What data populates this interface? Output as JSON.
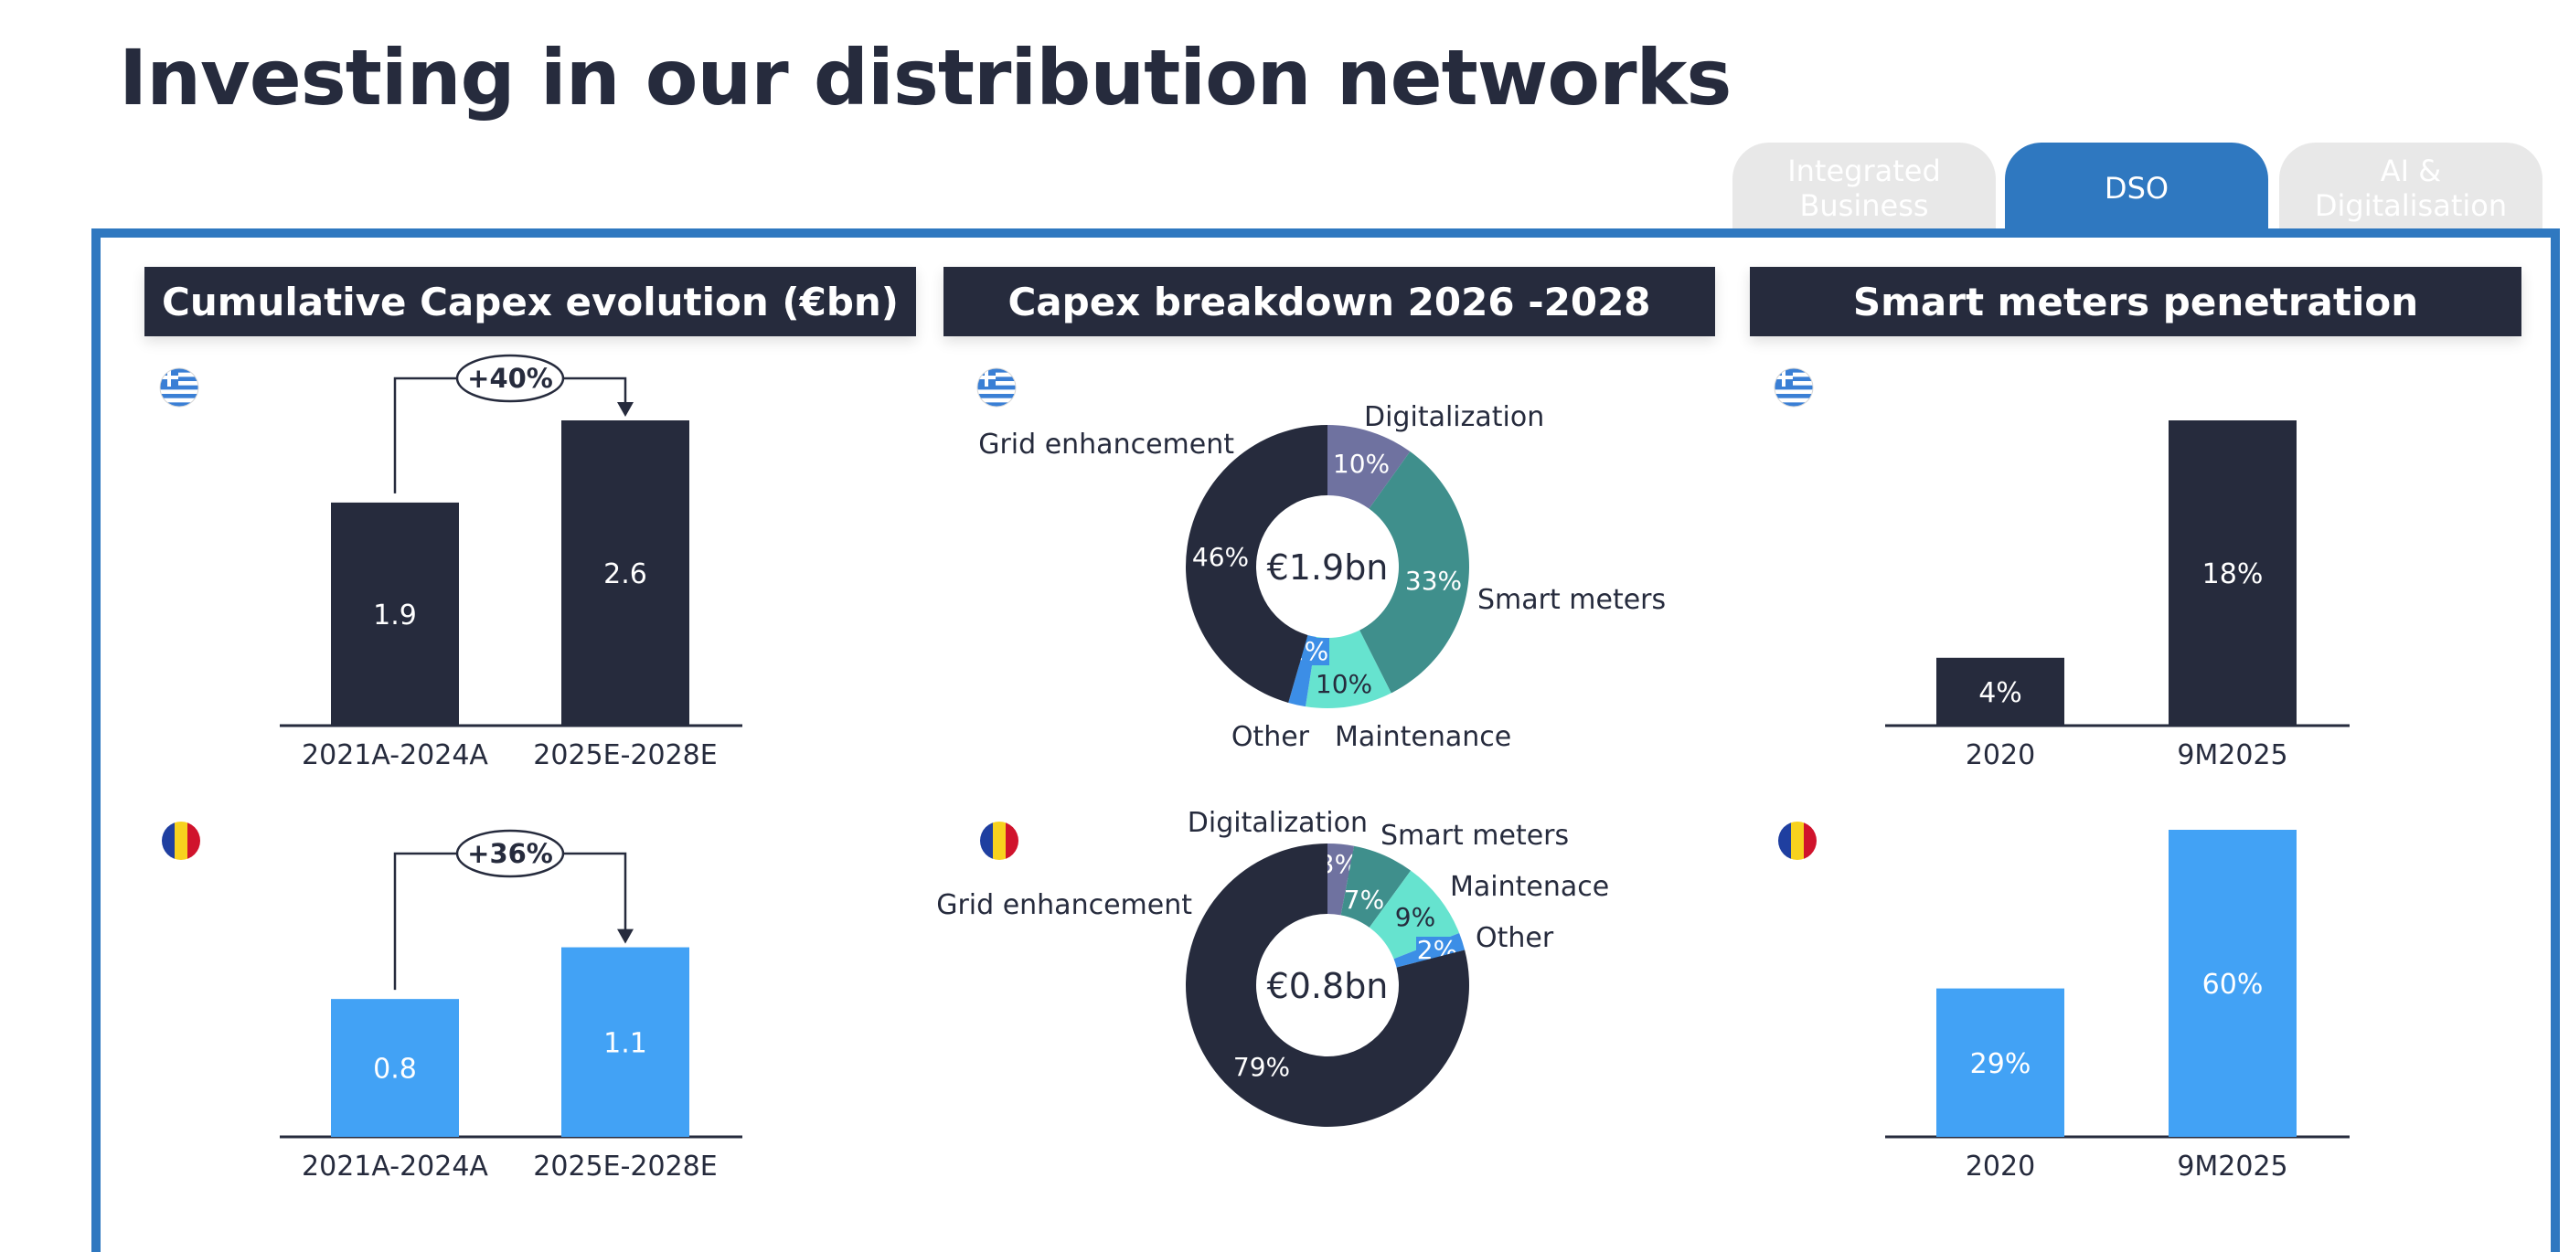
{
  "page": {
    "title": "Investing in our distribution networks"
  },
  "tabs": [
    {
      "label": "Integrated Business",
      "lines": [
        "Integrated",
        "Business"
      ],
      "active": false
    },
    {
      "label": "DSO",
      "lines": [
        "DSO"
      ],
      "active": true
    },
    {
      "label": "AI & Digitalisation",
      "lines": [
        "AI &",
        "Digitalisation"
      ],
      "active": false
    }
  ],
  "panels": {
    "capex_evolution": {
      "title": "Cumulative Capex evolution (€bn)"
    },
    "capex_breakdown": {
      "title": "Capex breakdown 2026 -2028"
    },
    "smart_meters": {
      "title": "Smart meters penetration"
    }
  },
  "colors": {
    "dark": "#262b3d",
    "blue": "#42a2f5",
    "accent": "#2f78c0",
    "purple": "#6f72a0",
    "teal": "#3f8f8c",
    "mint": "#66e3cf",
    "other": "#3c8ee6"
  },
  "icons": {
    "greece": "greece-flag-icon",
    "romania": "romania-flag-icon"
  },
  "chart_data": [
    {
      "id": "capex_greece",
      "type": "bar",
      "country": "greece",
      "categories": [
        "2021A-2024A",
        "2025E-2028E"
      ],
      "values": [
        1.9,
        2.6
      ],
      "data_labels": [
        "1.9",
        "2.6"
      ],
      "growth_label": "+40%",
      "color": "#262b3d",
      "ylim": [
        0,
        2.6
      ]
    },
    {
      "id": "capex_romania",
      "type": "bar",
      "country": "romania",
      "categories": [
        "2021A-2024A",
        "2025E-2028E"
      ],
      "values": [
        0.8,
        1.1
      ],
      "data_labels": [
        "0.8",
        "1.1"
      ],
      "growth_label": "+36%",
      "color": "#42a2f5",
      "ylim": [
        0,
        1.4
      ]
    },
    {
      "id": "breakdown_greece",
      "type": "pie",
      "country": "greece",
      "center_label": "€1.9bn",
      "slices": [
        {
          "name": "Digitalization",
          "value": 10,
          "label": "10%",
          "color": "#6f72a0"
        },
        {
          "name": "Smart meters",
          "value": 33,
          "label": "33%",
          "color": "#3f8f8c"
        },
        {
          "name": "Maintenance",
          "value": 10,
          "label": "10%",
          "color": "#66e3cf"
        },
        {
          "name": "Other",
          "value": 2,
          "label": "2%",
          "color": "#3c8ee6"
        },
        {
          "name": "Grid enhancement",
          "value": 46,
          "label": "46%",
          "color": "#262b3d"
        }
      ]
    },
    {
      "id": "breakdown_romania",
      "type": "pie",
      "country": "romania",
      "center_label": "€0.8bn",
      "slices": [
        {
          "name": "Digitalization",
          "value": 3,
          "label": "3%",
          "color": "#6f72a0"
        },
        {
          "name": "Smart meters",
          "value": 7,
          "label": "7%",
          "color": "#3f8f8c"
        },
        {
          "name": "Maintenace",
          "value": 9,
          "label": "9%",
          "color": "#66e3cf"
        },
        {
          "name": "Other",
          "value": 2,
          "label": "2%",
          "color": "#3c8ee6"
        },
        {
          "name": "Grid enhancement",
          "value": 79,
          "label": "79%",
          "color": "#262b3d"
        }
      ]
    },
    {
      "id": "smart_meters_greece",
      "type": "bar",
      "country": "greece",
      "categories": [
        "2020",
        "9M2025"
      ],
      "values": [
        4,
        18
      ],
      "data_labels": [
        "4%",
        "18%"
      ],
      "color": "#262b3d",
      "ylim": [
        0,
        18
      ]
    },
    {
      "id": "smart_meters_romania",
      "type": "bar",
      "country": "romania",
      "categories": [
        "2020",
        "9M2025"
      ],
      "values": [
        29,
        60
      ],
      "data_labels": [
        "29%",
        "60%"
      ],
      "color": "#42a2f5",
      "ylim": [
        0,
        60
      ]
    }
  ]
}
